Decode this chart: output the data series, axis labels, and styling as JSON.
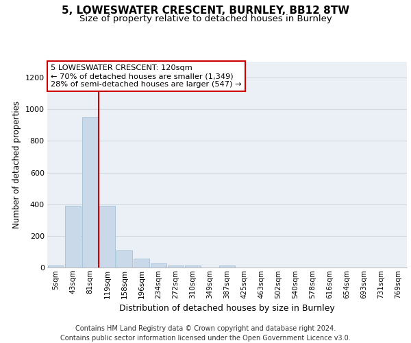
{
  "title1": "5, LOWESWATER CRESCENT, BURNLEY, BB12 8TW",
  "title2": "Size of property relative to detached houses in Burnley",
  "xlabel": "Distribution of detached houses by size in Burnley",
  "ylabel": "Number of detached properties",
  "footer1": "Contains HM Land Registry data © Crown copyright and database right 2024.",
  "footer2": "Contains public sector information licensed under the Open Government Licence v3.0.",
  "annotation_line1": "5 LOWESWATER CRESCENT: 120sqm",
  "annotation_line2": "← 70% of detached houses are smaller (1,349)",
  "annotation_line3": "28% of semi-detached houses are larger (547) →",
  "bar_labels": [
    "5sqm",
    "43sqm",
    "81sqm",
    "119sqm",
    "158sqm",
    "196sqm",
    "234sqm",
    "272sqm",
    "310sqm",
    "349sqm",
    "387sqm",
    "425sqm",
    "463sqm",
    "502sqm",
    "540sqm",
    "578sqm",
    "616sqm",
    "654sqm",
    "693sqm",
    "731sqm",
    "769sqm"
  ],
  "bar_values": [
    15,
    390,
    950,
    390,
    110,
    55,
    25,
    15,
    12,
    0,
    12,
    0,
    0,
    0,
    0,
    0,
    0,
    0,
    0,
    0,
    0
  ],
  "bar_color": "#c9d9ea",
  "bar_edgecolor": "#9ab8d0",
  "bar_linewidth": 0.5,
  "red_line_index": 3,
  "red_line_color": "#cc0000",
  "ylim": [
    0,
    1300
  ],
  "yticks": [
    0,
    200,
    400,
    600,
    800,
    1000,
    1200
  ],
  "grid_color": "#d0d8e0",
  "bg_color": "#eaf0f6",
  "title1_fontsize": 11,
  "title2_fontsize": 9.5,
  "annotation_fontsize": 8.2,
  "footer_fontsize": 7,
  "xlabel_fontsize": 9,
  "ylabel_fontsize": 8.5,
  "tick_fontsize": 7.5,
  "ytick_fontsize": 8
}
